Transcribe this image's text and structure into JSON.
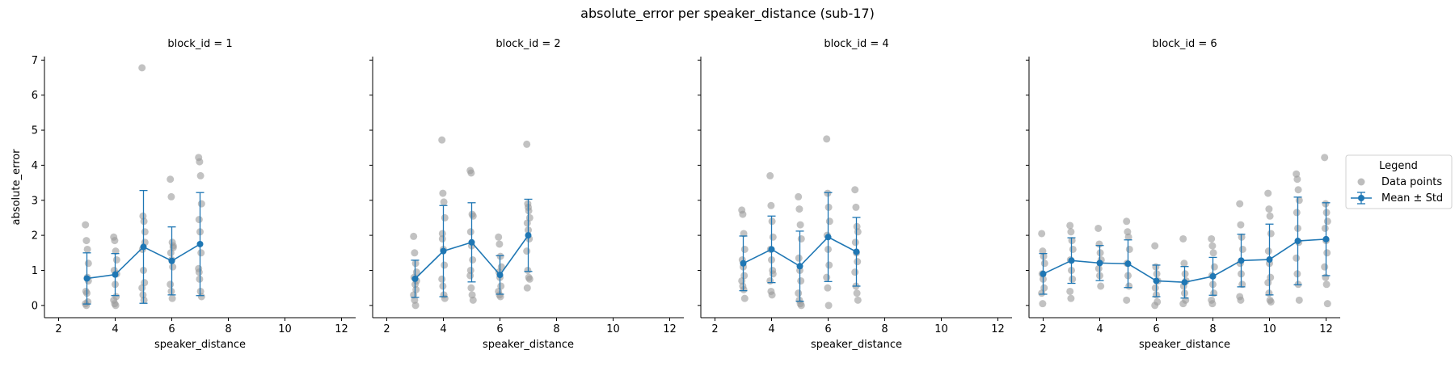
{
  "figure": {
    "title": "absolute_error per speaker_distance (sub-17)"
  },
  "legend": {
    "title": "Legend",
    "points_label": "Data points",
    "mean_label": "Mean ± Std"
  },
  "colors": {
    "points": "#9a9a9a",
    "mean": "#1f77b4",
    "axis": "#000000"
  },
  "chart_data": [
    {
      "type": "scatter",
      "title": "block_id = 1",
      "xlabel": "speaker_distance",
      "ylabel": "absolute_error",
      "xlim": [
        1.5,
        12.5
      ],
      "ylim": [
        -0.35,
        7.1
      ],
      "xticks": [
        2,
        4,
        6,
        8,
        10,
        12
      ],
      "yticks": [
        0,
        1,
        2,
        3,
        4,
        5,
        6,
        7
      ],
      "points": [
        {
          "x": 3,
          "y": [
            2.3,
            1.85,
            1.6,
            1.2,
            0.4,
            0.35,
            0.1,
            0.05,
            0.0,
            0.8,
            0.7
          ]
        },
        {
          "x": 4,
          "y": [
            1.95,
            1.85,
            1.55,
            1.3,
            1.0,
            0.6,
            0.25,
            0.15,
            0.05,
            0.0,
            0.9
          ]
        },
        {
          "x": 5,
          "y": [
            6.78,
            2.55,
            2.4,
            2.1,
            1.6,
            1.0,
            0.65,
            0.5,
            0.3,
            0.15,
            1.8
          ]
        },
        {
          "x": 6,
          "y": [
            3.6,
            3.1,
            1.8,
            1.65,
            1.5,
            1.3,
            1.1,
            0.6,
            0.4,
            0.2,
            1.7
          ]
        },
        {
          "x": 7,
          "y": [
            4.22,
            4.1,
            3.7,
            2.9,
            2.45,
            2.1,
            1.5,
            1.05,
            0.75,
            0.4,
            0.25,
            0.95
          ]
        }
      ],
      "mean": [
        {
          "x": 3,
          "y": 0.77,
          "std": 0.73
        },
        {
          "x": 4,
          "y": 0.88,
          "std": 0.6
        },
        {
          "x": 5,
          "y": 1.67,
          "std": 1.61
        },
        {
          "x": 6,
          "y": 1.27,
          "std": 0.97
        },
        {
          "x": 7,
          "y": 1.75,
          "std": 1.47
        }
      ]
    },
    {
      "type": "scatter",
      "title": "block_id = 2",
      "xlabel": "speaker_distance",
      "ylabel": "",
      "xlim": [
        1.5,
        12.5
      ],
      "ylim": [
        -0.35,
        7.1
      ],
      "xticks": [
        2,
        4,
        6,
        8,
        10,
        12
      ],
      "yticks": [
        0,
        1,
        2,
        3,
        4,
        5,
        6,
        7
      ],
      "points": [
        {
          "x": 3,
          "y": [
            1.97,
            1.5,
            1.2,
            0.95,
            0.8,
            0.6,
            0.45,
            0.3,
            0.15,
            0.0,
            0.7
          ]
        },
        {
          "x": 4,
          "y": [
            4.72,
            3.2,
            2.95,
            2.5,
            2.05,
            1.6,
            1.15,
            0.75,
            0.55,
            0.3,
            0.2,
            1.9
          ]
        },
        {
          "x": 5,
          "y": [
            3.85,
            3.78,
            2.6,
            2.55,
            2.1,
            1.7,
            1.3,
            0.85,
            0.5,
            0.3,
            0.15,
            1.0
          ]
        },
        {
          "x": 6,
          "y": [
            1.95,
            1.75,
            1.4,
            1.1,
            0.95,
            0.8,
            0.55,
            0.4,
            0.3,
            0.25
          ]
        },
        {
          "x": 7,
          "y": [
            4.6,
            2.9,
            2.7,
            2.5,
            2.35,
            2.15,
            1.9,
            1.55,
            1.0,
            0.8,
            0.75,
            0.5,
            2.8
          ]
        }
      ],
      "mean": [
        {
          "x": 3,
          "y": 0.76,
          "std": 0.53
        },
        {
          "x": 4,
          "y": 1.55,
          "std": 1.3
        },
        {
          "x": 5,
          "y": 1.8,
          "std": 1.13
        },
        {
          "x": 6,
          "y": 0.87,
          "std": 0.55
        },
        {
          "x": 7,
          "y": 2.0,
          "std": 1.03
        }
      ]
    },
    {
      "type": "scatter",
      "title": "block_id = 4",
      "xlabel": "speaker_distance",
      "ylabel": "",
      "xlim": [
        1.5,
        12.5
      ],
      "ylim": [
        -0.35,
        7.1
      ],
      "xticks": [
        2,
        4,
        6,
        8,
        10,
        12
      ],
      "yticks": [
        0,
        1,
        2,
        3,
        4,
        5,
        6,
        7
      ],
      "points": [
        {
          "x": 3,
          "y": [
            2.72,
            2.6,
            2.05,
            1.6,
            1.3,
            1.1,
            0.85,
            0.7,
            0.55,
            0.45,
            0.2
          ]
        },
        {
          "x": 4,
          "y": [
            3.7,
            2.85,
            2.4,
            1.95,
            1.6,
            1.3,
            1.0,
            0.7,
            0.4,
            0.3,
            0.9
          ]
        },
        {
          "x": 5,
          "y": [
            3.1,
            2.75,
            2.3,
            1.9,
            1.35,
            1.0,
            0.7,
            0.35,
            0.15,
            0.05,
            0.0
          ]
        },
        {
          "x": 6,
          "y": [
            4.75,
            3.2,
            2.8,
            2.4,
            2.0,
            1.6,
            1.15,
            0.8,
            0.5,
            0.0
          ]
        },
        {
          "x": 7,
          "y": [
            3.3,
            2.8,
            2.25,
            2.1,
            1.8,
            1.5,
            1.25,
            0.95,
            0.55,
            0.35,
            0.15
          ]
        }
      ],
      "mean": [
        {
          "x": 3,
          "y": 1.2,
          "std": 0.78
        },
        {
          "x": 4,
          "y": 1.6,
          "std": 0.95
        },
        {
          "x": 5,
          "y": 1.12,
          "std": 1.0
        },
        {
          "x": 6,
          "y": 1.95,
          "std": 1.27
        },
        {
          "x": 7,
          "y": 1.53,
          "std": 0.98
        }
      ]
    },
    {
      "type": "scatter",
      "title": "block_id = 6",
      "xlabel": "speaker_distance",
      "ylabel": "",
      "xlim": [
        1.5,
        12.5
      ],
      "ylim": [
        -0.35,
        7.1
      ],
      "xticks": [
        2,
        4,
        6,
        8,
        10,
        12
      ],
      "yticks": [
        0,
        1,
        2,
        3,
        4,
        5,
        6,
        7
      ],
      "points": [
        {
          "x": 2,
          "y": [
            2.05,
            1.55,
            1.4,
            1.2,
            0.9,
            0.75,
            0.5,
            0.35,
            0.05
          ]
        },
        {
          "x": 3,
          "y": [
            2.28,
            2.1,
            1.85,
            1.6,
            1.3,
            1.0,
            0.75,
            0.4,
            0.2
          ]
        },
        {
          "x": 4,
          "y": [
            2.2,
            1.75,
            1.5,
            1.3,
            1.05,
            0.85,
            0.55
          ]
        },
        {
          "x": 5,
          "y": [
            2.4,
            2.1,
            1.95,
            1.6,
            1.2,
            0.85,
            0.55,
            0.15
          ]
        },
        {
          "x": 6,
          "y": [
            1.7,
            1.1,
            0.9,
            0.7,
            0.5,
            0.3,
            0.1,
            0.0
          ]
        },
        {
          "x": 7,
          "y": [
            1.9,
            1.2,
            0.9,
            0.7,
            0.55,
            0.35,
            0.15,
            0.05
          ]
        },
        {
          "x": 8,
          "y": [
            1.9,
            1.7,
            1.5,
            1.1,
            0.85,
            0.6,
            0.35,
            0.15,
            0.05
          ]
        },
        {
          "x": 9,
          "y": [
            2.9,
            2.3,
            1.95,
            1.6,
            1.2,
            0.9,
            0.6,
            0.25,
            0.15
          ]
        },
        {
          "x": 10,
          "y": [
            3.2,
            2.75,
            2.55,
            2.05,
            1.55,
            1.2,
            0.8,
            0.65,
            0.35,
            0.15,
            0.1
          ]
        },
        {
          "x": 11,
          "y": [
            3.75,
            3.6,
            3.3,
            3.0,
            2.65,
            2.2,
            1.8,
            1.35,
            0.9,
            0.6,
            0.15
          ]
        },
        {
          "x": 12,
          "y": [
            4.22,
            2.9,
            2.65,
            2.4,
            2.2,
            1.85,
            1.5,
            1.1,
            0.8,
            0.6,
            0.05
          ]
        }
      ],
      "mean": [
        {
          "x": 2,
          "y": 0.9,
          "std": 0.58
        },
        {
          "x": 3,
          "y": 1.28,
          "std": 0.65
        },
        {
          "x": 4,
          "y": 1.21,
          "std": 0.5
        },
        {
          "x": 5,
          "y": 1.19,
          "std": 0.68
        },
        {
          "x": 6,
          "y": 0.7,
          "std": 0.45
        },
        {
          "x": 7,
          "y": 0.66,
          "std": 0.45
        },
        {
          "x": 8,
          "y": 0.83,
          "std": 0.54
        },
        {
          "x": 9,
          "y": 1.28,
          "std": 0.75
        },
        {
          "x": 10,
          "y": 1.31,
          "std": 1.01
        },
        {
          "x": 11,
          "y": 1.84,
          "std": 1.25
        },
        {
          "x": 12,
          "y": 1.89,
          "std": 1.04
        }
      ]
    }
  ]
}
